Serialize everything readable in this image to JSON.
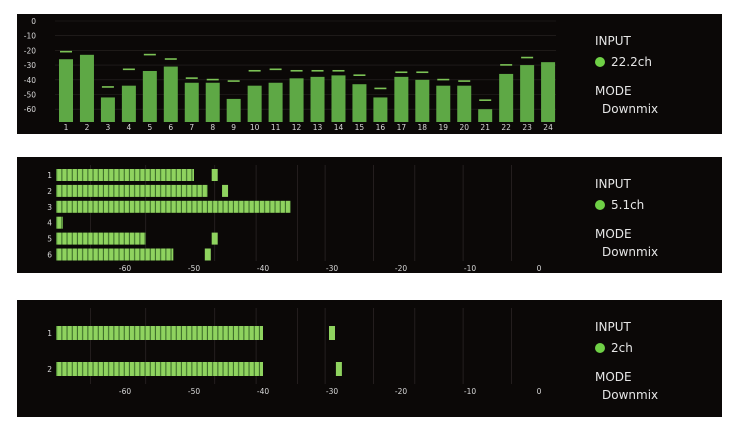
{
  "colors": {
    "background": "#0b0807",
    "meter": "#5ea845",
    "meter_segment": "#8fd35f",
    "peak": "#7cc356"
  },
  "panels": [
    {
      "type": "vertical-meter",
      "input_label": "INPUT",
      "input_value": "22.2ch",
      "input_indicator_icon": "green-dot-icon",
      "mode_label": "MODE",
      "mode_value": "Downmix",
      "y_ticks": [
        "0",
        "-10",
        "-20",
        "-30",
        "-40",
        "-50",
        "-60"
      ],
      "channels": [
        "1",
        "2",
        "3",
        "4",
        "5",
        "6",
        "7",
        "8",
        "9",
        "10",
        "11",
        "12",
        "13",
        "14",
        "15",
        "16",
        "17",
        "18",
        "19",
        "20",
        "21",
        "22",
        "23",
        "24"
      ],
      "levels_db": [
        -26,
        -23,
        -52,
        -44,
        -34,
        -31,
        -42,
        -42,
        -53,
        -44,
        -42,
        -39,
        -38,
        -37,
        -43,
        -52,
        -38,
        -40,
        -44,
        -44,
        -60,
        -36,
        -30,
        -28
      ],
      "peaks_db": [
        -21,
        null,
        -45,
        -33,
        -23,
        -26,
        -39,
        -40,
        -41,
        -34,
        -33,
        -34,
        -34,
        -34,
        -37,
        -46,
        -35,
        -35,
        -40,
        -41,
        -54,
        -30,
        -25,
        null
      ]
    },
    {
      "type": "horizontal-meter",
      "input_label": "INPUT",
      "input_value": "5.1ch",
      "input_indicator_icon": "green-dot-icon",
      "mode_label": "MODE",
      "mode_value": "Downmix",
      "x_ticks": [
        "-60",
        "-50",
        "-40",
        "-30",
        "-20",
        "-10",
        "0"
      ],
      "channels": [
        "1",
        "2",
        "3",
        "4",
        "5",
        "6"
      ],
      "levels_db": [
        -50,
        -48,
        -36,
        -69,
        -57,
        -53
      ],
      "peaks_db": [
        -47,
        -45.5,
        null,
        null,
        -47,
        -48
      ]
    },
    {
      "type": "horizontal-meter",
      "input_label": "INPUT",
      "input_value": "2ch",
      "input_indicator_icon": "green-dot-icon",
      "mode_label": "MODE",
      "mode_value": "Downmix",
      "x_ticks": [
        "-60",
        "-50",
        "-40",
        "-30",
        "-20",
        "-10",
        "0"
      ],
      "channels": [
        "1",
        "2"
      ],
      "levels_db": [
        -40,
        -40
      ],
      "peaks_db": [
        -30,
        -29
      ]
    }
  ]
}
